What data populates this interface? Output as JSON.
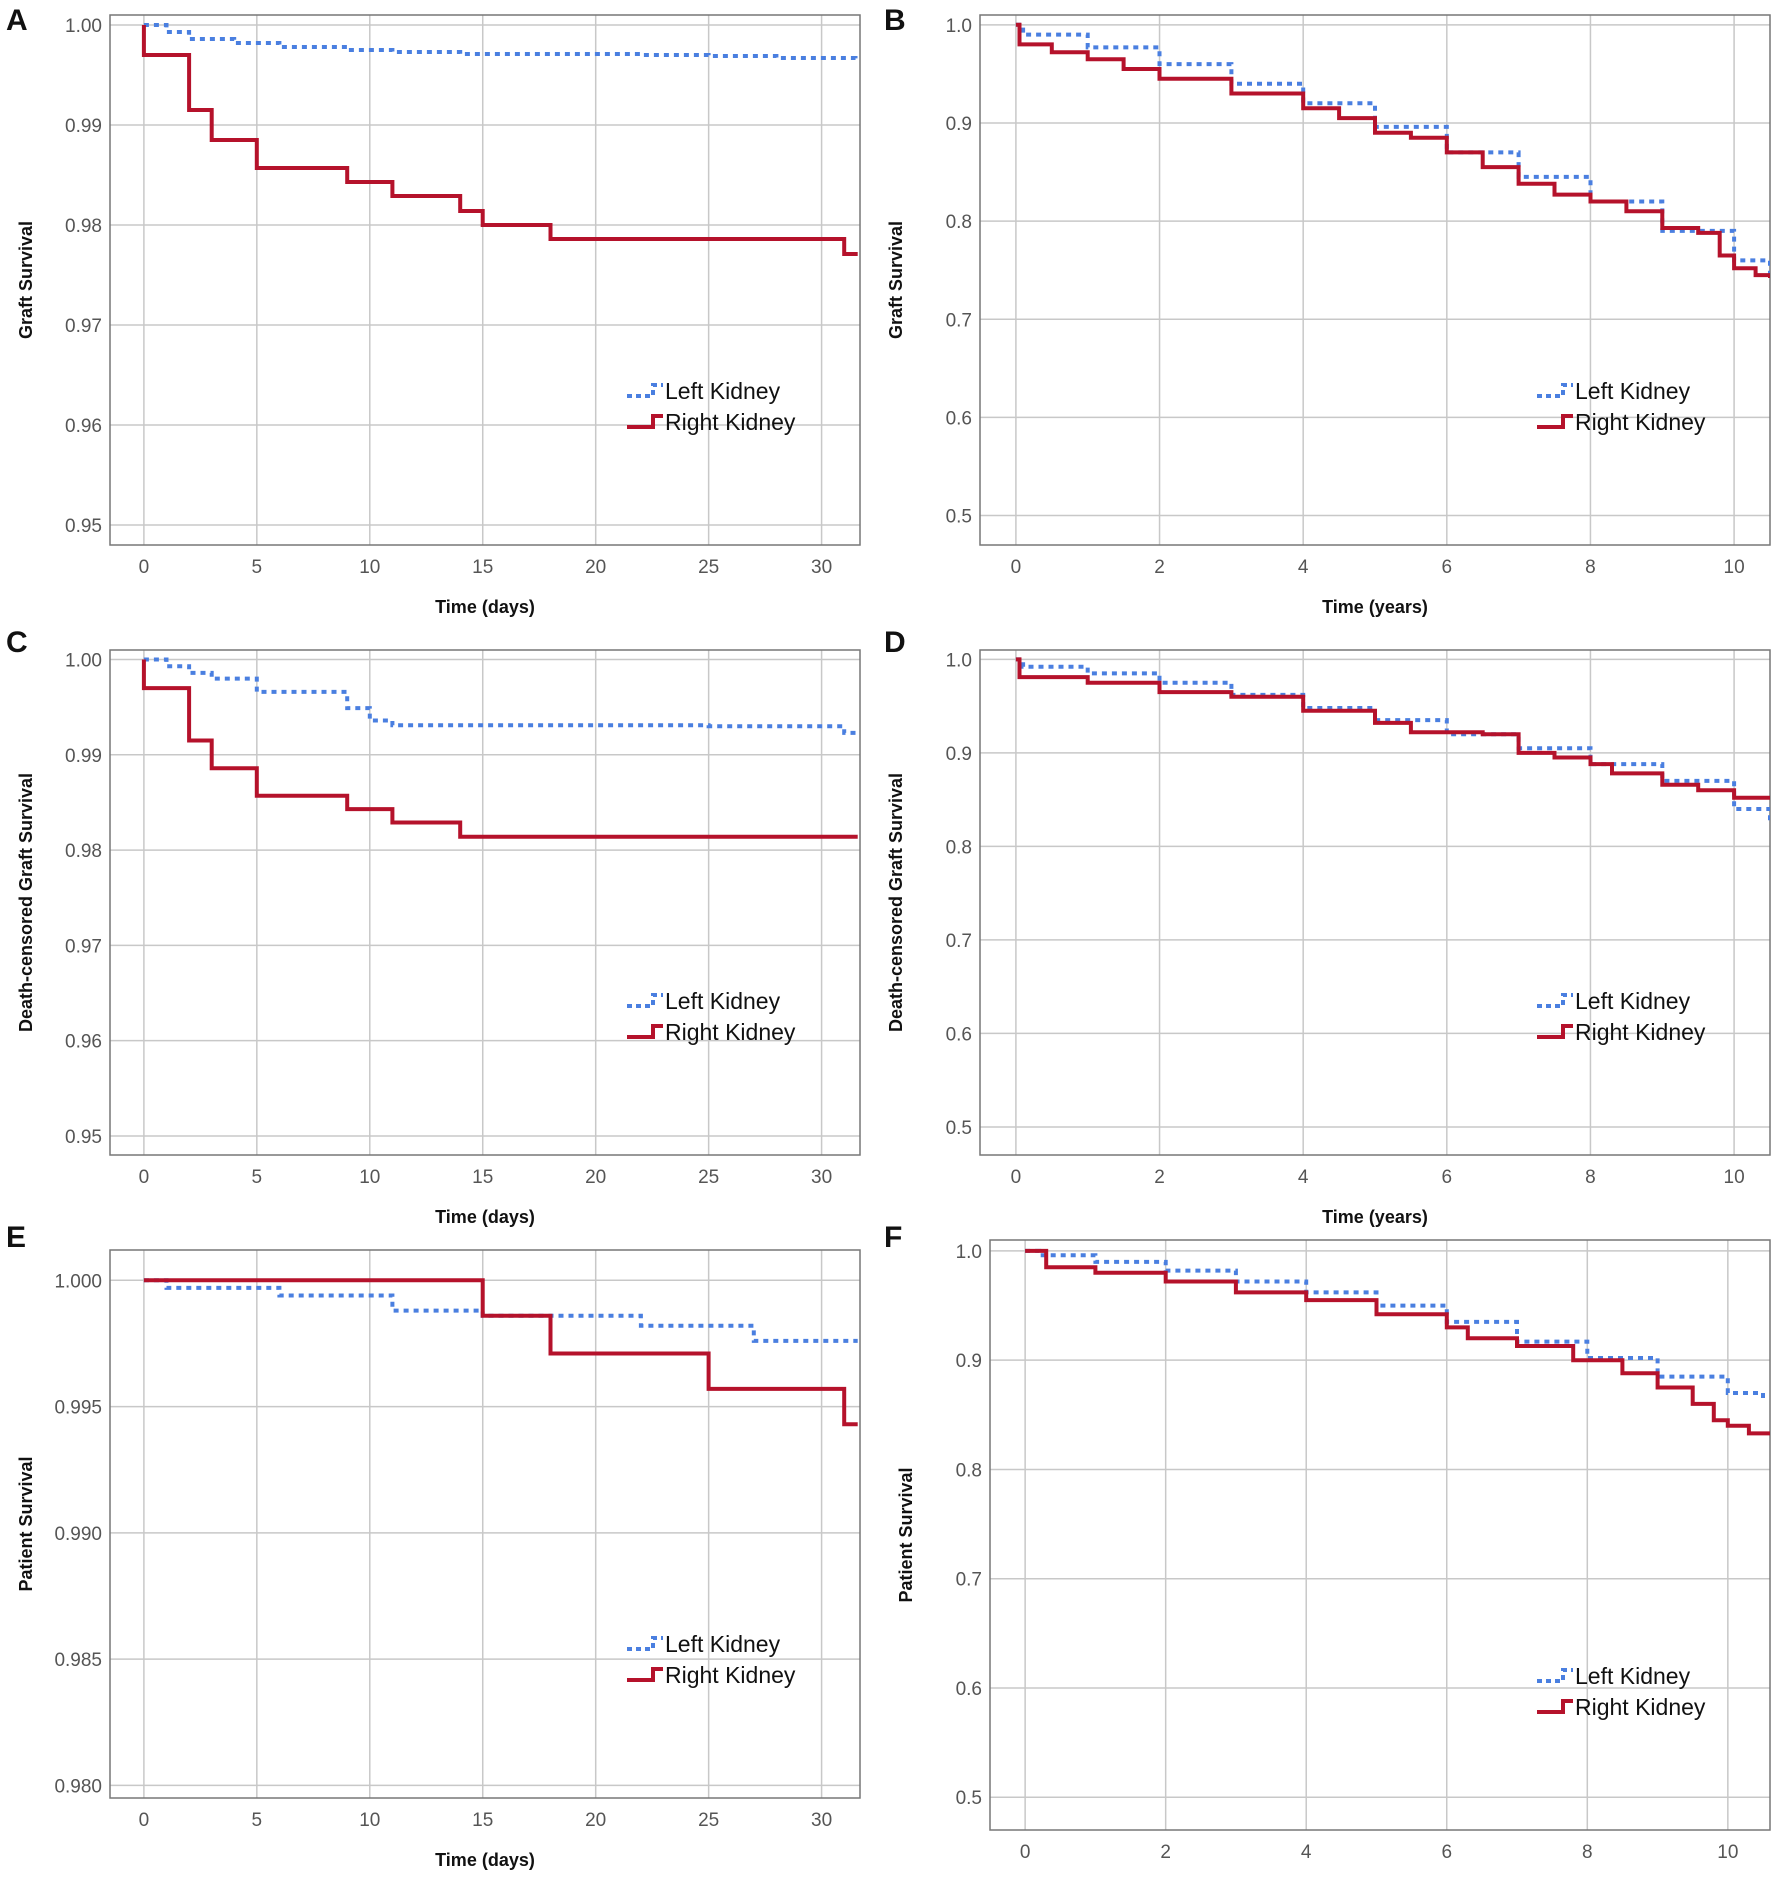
{
  "chart_data": [
    {
      "panel": "A",
      "type": "line",
      "step": true,
      "xlabel": "Time (days)",
      "ylabel": "Graft Survival",
      "xlim": [
        -1.5,
        31.7
      ],
      "ylim": [
        0.948,
        1.001
      ],
      "xticks": [
        0,
        5,
        10,
        15,
        20,
        25,
        30
      ],
      "yticks": [
        0.95,
        0.96,
        0.97,
        0.98,
        0.99,
        1.0
      ],
      "ytick_labels": [
        "0.95",
        "0.96",
        "0.97",
        "0.98",
        "0.99",
        "1.00"
      ],
      "grid": true,
      "legend_position": "bottom-right",
      "series": [
        {
          "name": "Left Kidney",
          "color": "#4a7fe0",
          "style": "dotted",
          "points": [
            [
              0,
              1.0
            ],
            [
              1,
              0.9993
            ],
            [
              2,
              0.9986
            ],
            [
              4,
              0.9982
            ],
            [
              6,
              0.9978
            ],
            [
              9,
              0.9975
            ],
            [
              11,
              0.9973
            ],
            [
              14,
              0.9971
            ],
            [
              22,
              0.997
            ],
            [
              25,
              0.9969
            ],
            [
              28,
              0.9967
            ],
            [
              31.5,
              0.9966
            ]
          ]
        },
        {
          "name": "Right Kidney",
          "color": "#b5122b",
          "style": "solid",
          "points": [
            [
              0,
              1.0
            ],
            [
              0,
              0.997
            ],
            [
              2,
              0.9915
            ],
            [
              3,
              0.9885
            ],
            [
              5,
              0.9857
            ],
            [
              9,
              0.9843
            ],
            [
              11,
              0.9829
            ],
            [
              14,
              0.9814
            ],
            [
              15,
              0.98
            ],
            [
              18,
              0.9786
            ],
            [
              31,
              0.9771
            ],
            [
              31.6,
              0.9771
            ]
          ]
        }
      ]
    },
    {
      "panel": "B",
      "type": "line",
      "step": true,
      "xlabel": "Time (years)",
      "ylabel": "Graft Survival",
      "xlim": [
        -0.5,
        10.5
      ],
      "ylim": [
        0.47,
        1.01
      ],
      "xticks": [
        0,
        2,
        4,
        6,
        8,
        10
      ],
      "yticks": [
        0.5,
        0.6,
        0.7,
        0.8,
        0.9,
        1.0
      ],
      "ytick_labels": [
        "0.5",
        "0.6",
        "0.7",
        "0.8",
        "0.9",
        "1.0"
      ],
      "grid": true,
      "legend_position": "bottom-right",
      "series": [
        {
          "name": "Left Kidney",
          "color": "#4a7fe0",
          "style": "dotted",
          "points": [
            [
              0,
              1.0
            ],
            [
              0.1,
              0.99
            ],
            [
              1,
              0.977
            ],
            [
              2,
              0.96
            ],
            [
              3,
              0.94
            ],
            [
              4,
              0.92
            ],
            [
              5,
              0.896
            ],
            [
              6,
              0.87
            ],
            [
              7,
              0.845
            ],
            [
              8,
              0.82
            ],
            [
              9,
              0.79
            ],
            [
              10,
              0.76
            ],
            [
              10.5,
              0.74
            ]
          ]
        },
        {
          "name": "Right Kidney",
          "color": "#b5122b",
          "style": "solid",
          "points": [
            [
              0,
              1.0
            ],
            [
              0.05,
              0.98
            ],
            [
              0.5,
              0.972
            ],
            [
              1,
              0.965
            ],
            [
              1.5,
              0.955
            ],
            [
              2,
              0.945
            ],
            [
              3,
              0.93
            ],
            [
              4,
              0.915
            ],
            [
              4.5,
              0.905
            ],
            [
              5,
              0.89
            ],
            [
              5.5,
              0.885
            ],
            [
              6,
              0.87
            ],
            [
              6.5,
              0.855
            ],
            [
              7,
              0.838
            ],
            [
              7.5,
              0.827
            ],
            [
              8,
              0.82
            ],
            [
              8.5,
              0.81
            ],
            [
              9,
              0.793
            ],
            [
              9.5,
              0.788
            ],
            [
              9.8,
              0.765
            ],
            [
              10,
              0.752
            ],
            [
              10.3,
              0.745
            ],
            [
              10.5,
              0.742
            ]
          ]
        }
      ]
    },
    {
      "panel": "C",
      "type": "line",
      "step": true,
      "xlabel": "Time (days)",
      "ylabel": "Death-censored Graft Survival",
      "xlim": [
        -1.5,
        31.7
      ],
      "ylim": [
        0.948,
        1.001
      ],
      "xticks": [
        0,
        5,
        10,
        15,
        20,
        25,
        30
      ],
      "yticks": [
        0.95,
        0.96,
        0.97,
        0.98,
        0.99,
        1.0
      ],
      "ytick_labels": [
        "0.95",
        "0.96",
        "0.97",
        "0.98",
        "0.99",
        "1.00"
      ],
      "grid": true,
      "legend_position": "bottom-right",
      "series": [
        {
          "name": "Left Kidney",
          "color": "#4a7fe0",
          "style": "dotted",
          "points": [
            [
              0,
              1.0
            ],
            [
              1,
              0.9993
            ],
            [
              2,
              0.9986
            ],
            [
              3,
              0.998
            ],
            [
              5,
              0.9966
            ],
            [
              9,
              0.9949
            ],
            [
              10,
              0.9936
            ],
            [
              11,
              0.9931
            ],
            [
              14,
              0.9931
            ],
            [
              20,
              0.9931
            ],
            [
              25,
              0.993
            ],
            [
              31,
              0.9923
            ],
            [
              31.6,
              0.9923
            ]
          ]
        },
        {
          "name": "Right Kidney",
          "color": "#b5122b",
          "style": "solid",
          "points": [
            [
              0,
              1.0
            ],
            [
              0,
              0.997
            ],
            [
              2,
              0.9915
            ],
            [
              3,
              0.9886
            ],
            [
              5,
              0.9857
            ],
            [
              9,
              0.9843
            ],
            [
              11,
              0.9829
            ],
            [
              14,
              0.9814
            ],
            [
              31.6,
              0.9814
            ]
          ]
        }
      ]
    },
    {
      "panel": "D",
      "type": "line",
      "step": true,
      "xlabel": "Time (years)",
      "ylabel": "Death-censored Graft Survival",
      "xlim": [
        -0.5,
        10.5
      ],
      "ylim": [
        0.47,
        1.01
      ],
      "xticks": [
        0,
        2,
        4,
        6,
        8,
        10
      ],
      "yticks": [
        0.5,
        0.6,
        0.7,
        0.8,
        0.9,
        1.0
      ],
      "ytick_labels": [
        "0.5",
        "0.6",
        "0.7",
        "0.8",
        "0.9",
        "1.0"
      ],
      "grid": true,
      "legend_position": "bottom-right",
      "series": [
        {
          "name": "Left Kidney",
          "color": "#4a7fe0",
          "style": "dotted",
          "points": [
            [
              0,
              1.0
            ],
            [
              0.1,
              0.992
            ],
            [
              1,
              0.985
            ],
            [
              2,
              0.975
            ],
            [
              3,
              0.962
            ],
            [
              4,
              0.948
            ],
            [
              5,
              0.935
            ],
            [
              6,
              0.92
            ],
            [
              7,
              0.905
            ],
            [
              8,
              0.888
            ],
            [
              9,
              0.87
            ],
            [
              10,
              0.84
            ],
            [
              10.5,
              0.826
            ]
          ]
        },
        {
          "name": "Right Kidney",
          "color": "#b5122b",
          "style": "solid",
          "points": [
            [
              0,
              1.0
            ],
            [
              0.05,
              0.981
            ],
            [
              1,
              0.975
            ],
            [
              2,
              0.965
            ],
            [
              3,
              0.96
            ],
            [
              4,
              0.945
            ],
            [
              5,
              0.932
            ],
            [
              5.5,
              0.922
            ],
            [
              6.5,
              0.92
            ],
            [
              7,
              0.9
            ],
            [
              7.5,
              0.895
            ],
            [
              8,
              0.888
            ],
            [
              8.3,
              0.878
            ],
            [
              9,
              0.866
            ],
            [
              9.5,
              0.86
            ],
            [
              10,
              0.852
            ],
            [
              10.5,
              0.852
            ]
          ]
        }
      ]
    },
    {
      "panel": "E",
      "type": "line",
      "step": true,
      "xlabel": "Time (days)",
      "ylabel": "Patient Survival",
      "xlim": [
        -1.5,
        31.7
      ],
      "ylim": [
        0.9795,
        1.0012
      ],
      "xticks": [
        0,
        5,
        10,
        15,
        20,
        25,
        30
      ],
      "yticks": [
        0.98,
        0.985,
        0.99,
        0.995,
        1.0
      ],
      "ytick_labels": [
        "0.980",
        "0.985",
        "0.990",
        "0.995",
        "1.000"
      ],
      "grid": true,
      "legend_position": "bottom-right",
      "series": [
        {
          "name": "Left Kidney",
          "color": "#4a7fe0",
          "style": "dotted",
          "points": [
            [
              0,
              1.0
            ],
            [
              1,
              0.9997
            ],
            [
              6,
              0.9994
            ],
            [
              11,
              0.9988
            ],
            [
              15,
              0.9986
            ],
            [
              22,
              0.9982
            ],
            [
              27,
              0.9976
            ],
            [
              31.6,
              0.9976
            ]
          ]
        },
        {
          "name": "Right Kidney",
          "color": "#b5122b",
          "style": "solid",
          "points": [
            [
              0,
              1.0
            ],
            [
              15,
              0.9986
            ],
            [
              18,
              0.9971
            ],
            [
              25,
              0.9957
            ],
            [
              31,
              0.9943
            ],
            [
              31.6,
              0.9943
            ]
          ]
        }
      ]
    },
    {
      "panel": "F",
      "type": "line",
      "step": true,
      "xlabel": "Time (years)",
      "ylabel": "Patient Survival",
      "xlim": [
        -0.5,
        10.6
      ],
      "ylim": [
        0.47,
        1.01
      ],
      "xticks": [
        0,
        2,
        4,
        6,
        8,
        10
      ],
      "yticks": [
        0.5,
        0.6,
        0.7,
        0.8,
        0.9,
        1.0
      ],
      "ytick_labels": [
        "0.5",
        "0.6",
        "0.7",
        "0.8",
        "0.9",
        "1.0"
      ],
      "grid": true,
      "legend_position": "bottom-right",
      "series": [
        {
          "name": "Left Kidney",
          "color": "#4a7fe0",
          "style": "dotted",
          "points": [
            [
              0,
              1.0
            ],
            [
              0.2,
              0.996
            ],
            [
              1,
              0.99
            ],
            [
              2,
              0.982
            ],
            [
              3,
              0.972
            ],
            [
              4,
              0.962
            ],
            [
              5,
              0.95
            ],
            [
              6,
              0.935
            ],
            [
              7,
              0.917
            ],
            [
              8,
              0.902
            ],
            [
              9,
              0.885
            ],
            [
              10,
              0.87
            ],
            [
              10.5,
              0.864
            ]
          ]
        },
        {
          "name": "Right Kidney",
          "color": "#b5122b",
          "style": "solid",
          "points": [
            [
              0,
              1.0
            ],
            [
              0.3,
              0.985
            ],
            [
              1,
              0.98
            ],
            [
              2,
              0.972
            ],
            [
              3,
              0.962
            ],
            [
              4,
              0.955
            ],
            [
              5,
              0.942
            ],
            [
              6,
              0.93
            ],
            [
              6.3,
              0.92
            ],
            [
              7,
              0.913
            ],
            [
              7.8,
              0.9
            ],
            [
              8.5,
              0.888
            ],
            [
              9,
              0.875
            ],
            [
              9.5,
              0.86
            ],
            [
              9.8,
              0.845
            ],
            [
              10,
              0.84
            ],
            [
              10.3,
              0.833
            ],
            [
              10.6,
              0.832
            ]
          ]
        }
      ]
    }
  ]
}
